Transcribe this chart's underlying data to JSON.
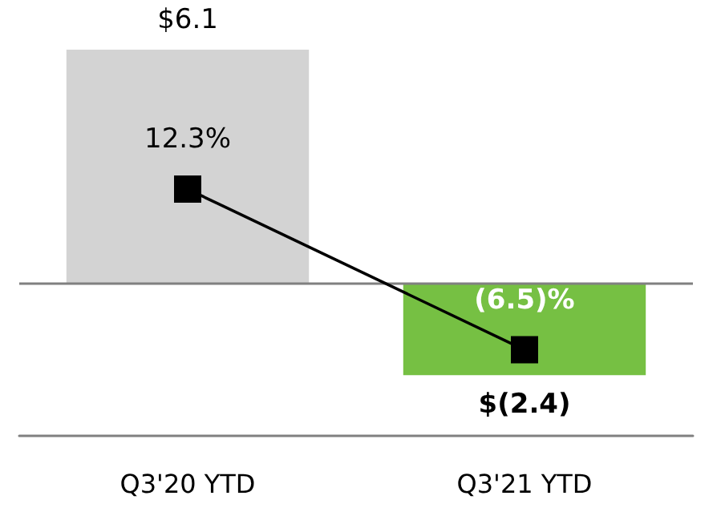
{
  "chart_data": {
    "type": "bar",
    "categories": [
      "Q3'20 YTD",
      "Q3'21 YTD"
    ],
    "tick_labels": "x",
    "series": [
      {
        "colors": [
          "#d3d3d3",
          "#76c043"
        ],
        "values": [
          6.1,
          -2.4
        ],
        "value_labels": [
          "$6.1",
          "$(2.4)"
        ]
      },
      {
        "type": "line",
        "axis": "y2",
        "color": "#000000",
        "marker": "square",
        "line_style": "solid",
        "values": [
          12.3,
          -6.5
        ],
        "value_labels": [
          "12.3%",
          "(6.5)%"
        ]
      }
    ],
    "ref_lines": [
      {
        "axis": "y",
        "value": 0,
        "color": "#808080"
      }
    ]
  }
}
